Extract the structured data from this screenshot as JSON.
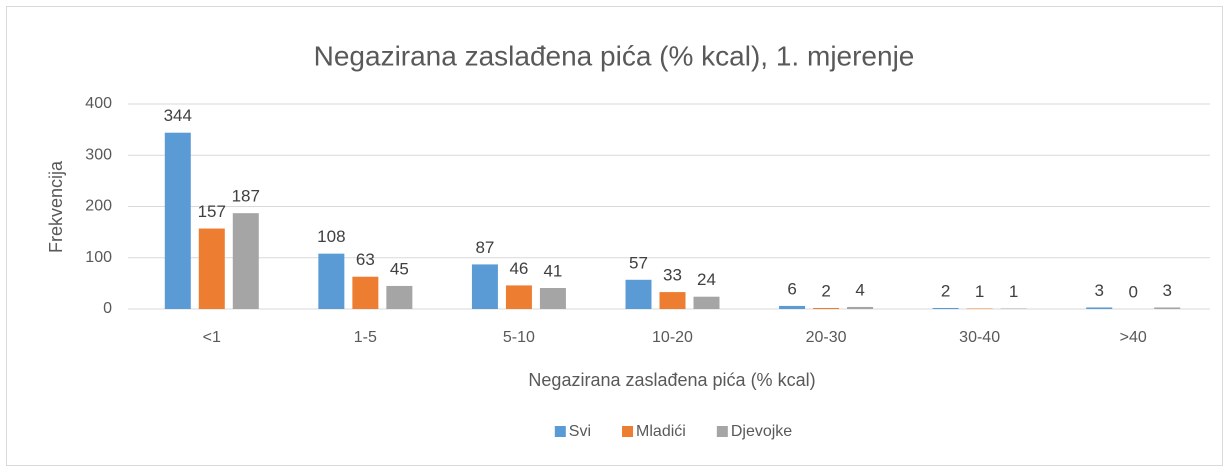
{
  "chart_data": {
    "type": "bar",
    "title": "Negazirana zaslađena pića (% kcal), 1. mjerenje",
    "x_label": "Negazirana zaslađena pića (% kcal)",
    "y_label": "Frekvencija",
    "categories": [
      "<1",
      "1-5",
      "5-10",
      "10-20",
      "20-30",
      "30-40",
      ">40"
    ],
    "series": [
      {
        "name": "Svi",
        "color": "#5b9bd5",
        "values": [
          344,
          108,
          87,
          57,
          6,
          2,
          3
        ]
      },
      {
        "name": "Mladići",
        "color": "#ed7d31",
        "values": [
          157,
          63,
          46,
          33,
          2,
          1,
          0
        ]
      },
      {
        "name": "Djevojke",
        "color": "#a5a5a5",
        "values": [
          187,
          45,
          41,
          24,
          4,
          1,
          3
        ]
      }
    ],
    "ylim": [
      0,
      400
    ],
    "yticks": [
      0,
      100,
      200,
      300,
      400
    ],
    "grid": true,
    "legend": "bottom"
  }
}
